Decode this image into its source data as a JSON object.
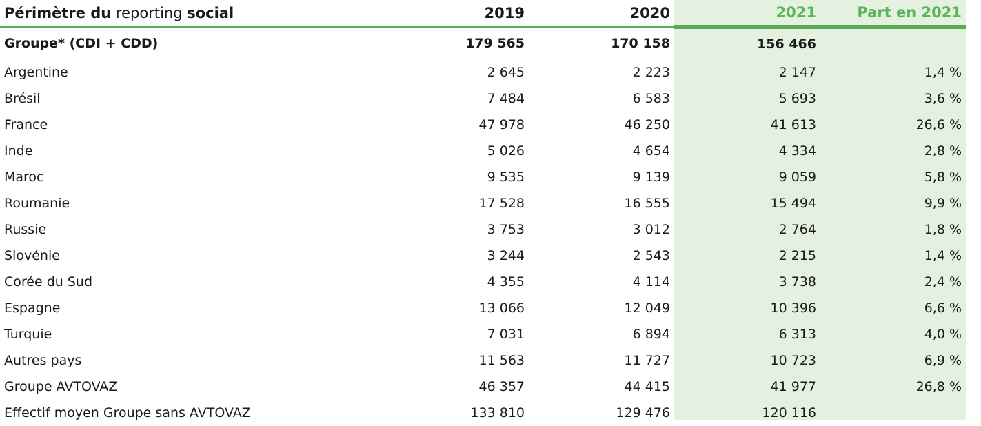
{
  "header": {
    "label_part1": "Périmètre du",
    "label_part2": " reporting ",
    "label_part3": "social",
    "col_2019": "2019",
    "col_2020": "2020",
    "col_2021": "2021",
    "col_part": "Part en 2021"
  },
  "colors": {
    "accent_green": "#5bb35a",
    "highlight_bg": "#e4f1e1"
  },
  "rows": [
    {
      "label": "Groupe* (CDI + CDD)",
      "v2019": "179 565",
      "v2020": "170 158",
      "v2021": "156 466",
      "part": "",
      "bold": true
    },
    {
      "label": "Argentine",
      "v2019": "2 645",
      "v2020": "2 223",
      "v2021": "2 147",
      "part": "1,4 %"
    },
    {
      "label": "Brésil",
      "v2019": "7 484",
      "v2020": "6 583",
      "v2021": "5 693",
      "part": "3,6 %"
    },
    {
      "label": "France",
      "v2019": "47 978",
      "v2020": "46 250",
      "v2021": "41 613",
      "part": "26,6 %"
    },
    {
      "label": "Inde",
      "v2019": "5 026",
      "v2020": "4 654",
      "v2021": "4 334",
      "part": "2,8 %"
    },
    {
      "label": "Maroc",
      "v2019": "9 535",
      "v2020": "9 139",
      "v2021": "9 059",
      "part": "5,8 %"
    },
    {
      "label": "Roumanie",
      "v2019": "17 528",
      "v2020": "16 555",
      "v2021": "15 494",
      "part": "9,9 %"
    },
    {
      "label": "Russie",
      "v2019": "3 753",
      "v2020": "3 012",
      "v2021": "2 764",
      "part": "1,8 %"
    },
    {
      "label": "Slovénie",
      "v2019": "3 244",
      "v2020": "2 543",
      "v2021": "2 215",
      "part": "1,4 %"
    },
    {
      "label": "Corée du Sud",
      "v2019": "4 355",
      "v2020": "4 114",
      "v2021": "3 738",
      "part": "2,4 %"
    },
    {
      "label": "Espagne",
      "v2019": "13 066",
      "v2020": "12 049",
      "v2021": "10 396",
      "part": "6,6 %"
    },
    {
      "label": "Turquie",
      "v2019": "7 031",
      "v2020": "6 894",
      "v2021": "6 313",
      "part": "4,0 %"
    },
    {
      "label": "Autres pays",
      "v2019": "11 563",
      "v2020": "11 727",
      "v2021": "10 723",
      "part": "6,9 %"
    },
    {
      "label": "Groupe AVTOVAZ",
      "v2019": "46 357",
      "v2020": "44 415",
      "v2021": "41 977",
      "part": "26,8 %"
    },
    {
      "label": "Effectif moyen Groupe sans AVTOVAZ",
      "v2019": "133 810",
      "v2020": "129 476",
      "v2021": "120 116",
      "part": ""
    }
  ]
}
